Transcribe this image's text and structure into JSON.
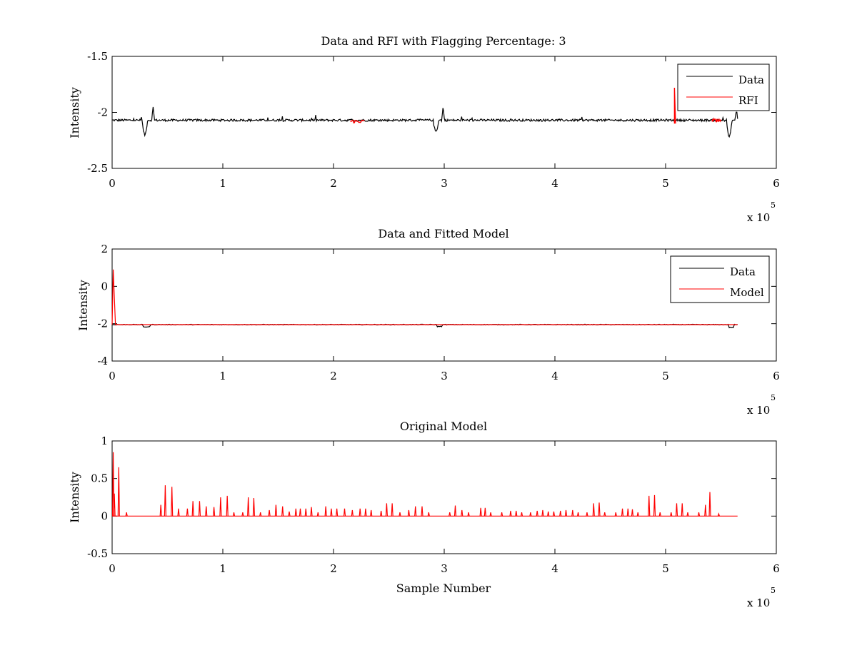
{
  "figure": {
    "background": "#ffffff"
  },
  "chart_data": [
    {
      "type": "line",
      "title": "Data and RFI with Flagging Percentage: 3",
      "xlabel": "",
      "ylabel": "Intensity",
      "xlim": [
        0,
        6
      ],
      "ylim": [
        -2.5,
        -1.5
      ],
      "x_multiplier": "x 10",
      "x_multiplier_exp": "5",
      "xticks": [
        "0",
        "1",
        "2",
        "3",
        "4",
        "5",
        "6"
      ],
      "yticks": [
        "-1.5",
        "-2",
        "-2.5"
      ],
      "ytick_values": [
        -1.5,
        -2,
        -2.5
      ],
      "legend": {
        "placement": "top-right",
        "entries": [
          {
            "label": "Data",
            "color": "#000000"
          },
          {
            "label": "RFI",
            "color": "#ff0000"
          }
        ]
      },
      "series": [
        {
          "name": "Data",
          "color": "#000000",
          "baseline": -2.07,
          "features": [
            {
              "x": 0.0,
              "type": "dip",
              "depth": 0.1,
              "width": 0.02
            },
            {
              "x": 0.32,
              "type": "dip",
              "depth": 0.13,
              "width": 0.05
            },
            {
              "x": 0.37,
              "type": "spike",
              "height": 0.12
            },
            {
              "x": 2.95,
              "type": "dip",
              "depth": 0.1,
              "width": 0.05
            },
            {
              "x": 2.99,
              "type": "spike",
              "height": 0.13
            },
            {
              "x": 5.6,
              "type": "dip",
              "depth": 0.15,
              "width": 0.05
            },
            {
              "x": 5.64,
              "type": "spike",
              "height": 0.1
            }
          ],
          "xmax": 5.65
        },
        {
          "name": "RFI",
          "color": "#ff0000",
          "segments": [
            {
              "x0": 2.15,
              "x1": 2.28,
              "y": -2.08
            },
            {
              "x0": 5.08,
              "x1": 5.09,
              "y": -1.78
            },
            {
              "x0": 5.42,
              "x1": 5.5,
              "y": -2.07
            }
          ]
        }
      ]
    },
    {
      "type": "line",
      "title": "Data and Fitted Model",
      "xlabel": "",
      "ylabel": "Intensity",
      "xlim": [
        0,
        6
      ],
      "ylim": [
        -4,
        2
      ],
      "x_multiplier": "x 10",
      "x_multiplier_exp": "5",
      "xticks": [
        "0",
        "1",
        "2",
        "3",
        "4",
        "5",
        "6"
      ],
      "yticks": [
        "2",
        "0",
        "-2",
        "-4"
      ],
      "ytick_values": [
        2,
        0,
        -2,
        -4
      ],
      "legend": {
        "placement": "top-right",
        "entries": [
          {
            "label": "Data",
            "color": "#000000"
          },
          {
            "label": "Model",
            "color": "#ff0000"
          }
        ]
      },
      "series": [
        {
          "name": "Data",
          "color": "#000000",
          "baseline": -2.05,
          "xmax": 5.65
        },
        {
          "name": "Model",
          "color": "#ff0000",
          "baseline": -2.05,
          "spike_x": 0.01,
          "spike_y": 0.9,
          "xmax": 5.65
        }
      ]
    },
    {
      "type": "line",
      "title": "Original Model",
      "xlabel": "Sample Number",
      "ylabel": "Intensity",
      "xlim": [
        0,
        6
      ],
      "ylim": [
        -0.5,
        1
      ],
      "x_multiplier": "x 10",
      "x_multiplier_exp": "5",
      "xticks": [
        "0",
        "1",
        "2",
        "3",
        "4",
        "5",
        "6"
      ],
      "yticks": [
        "1",
        "0.5",
        "0",
        "-0.5"
      ],
      "ytick_values": [
        1,
        0.5,
        0,
        -0.5
      ],
      "series": [
        {
          "name": "Model",
          "color": "#ff0000",
          "baseline": 0,
          "xmax": 5.65,
          "spikes": [
            [
              0.01,
              0.85
            ],
            [
              0.02,
              0.3
            ],
            [
              0.06,
              0.65
            ],
            [
              0.13,
              0.05
            ],
            [
              0.44,
              0.15
            ],
            [
              0.48,
              0.41
            ],
            [
              0.54,
              0.39
            ],
            [
              0.6,
              0.1
            ],
            [
              0.68,
              0.1
            ],
            [
              0.73,
              0.2
            ],
            [
              0.79,
              0.2
            ],
            [
              0.85,
              0.13
            ],
            [
              0.92,
              0.12
            ],
            [
              0.98,
              0.25
            ],
            [
              1.04,
              0.27
            ],
            [
              1.1,
              0.05
            ],
            [
              1.18,
              0.05
            ],
            [
              1.23,
              0.25
            ],
            [
              1.28,
              0.24
            ],
            [
              1.34,
              0.05
            ],
            [
              1.42,
              0.08
            ],
            [
              1.48,
              0.15
            ],
            [
              1.54,
              0.13
            ],
            [
              1.6,
              0.06
            ],
            [
              1.66,
              0.1
            ],
            [
              1.7,
              0.1
            ],
            [
              1.75,
              0.1
            ],
            [
              1.8,
              0.12
            ],
            [
              1.86,
              0.05
            ],
            [
              1.93,
              0.13
            ],
            [
              1.98,
              0.1
            ],
            [
              2.03,
              0.1
            ],
            [
              2.1,
              0.1
            ],
            [
              2.17,
              0.08
            ],
            [
              2.24,
              0.1
            ],
            [
              2.29,
              0.1
            ],
            [
              2.34,
              0.08
            ],
            [
              2.43,
              0.07
            ],
            [
              2.48,
              0.17
            ],
            [
              2.53,
              0.17
            ],
            [
              2.6,
              0.05
            ],
            [
              2.68,
              0.08
            ],
            [
              2.74,
              0.13
            ],
            [
              2.8,
              0.13
            ],
            [
              2.86,
              0.05
            ],
            [
              3.05,
              0.05
            ],
            [
              3.1,
              0.14
            ],
            [
              3.16,
              0.08
            ],
            [
              3.22,
              0.05
            ],
            [
              3.33,
              0.11
            ],
            [
              3.37,
              0.11
            ],
            [
              3.42,
              0.05
            ],
            [
              3.52,
              0.05
            ],
            [
              3.6,
              0.07
            ],
            [
              3.65,
              0.07
            ],
            [
              3.7,
              0.05
            ],
            [
              3.78,
              0.05
            ],
            [
              3.84,
              0.07
            ],
            [
              3.89,
              0.08
            ],
            [
              3.94,
              0.06
            ],
            [
              3.99,
              0.06
            ],
            [
              4.05,
              0.07
            ],
            [
              4.1,
              0.08
            ],
            [
              4.16,
              0.08
            ],
            [
              4.21,
              0.05
            ],
            [
              4.29,
              0.05
            ],
            [
              4.35,
              0.17
            ],
            [
              4.4,
              0.18
            ],
            [
              4.45,
              0.05
            ],
            [
              4.55,
              0.05
            ],
            [
              4.61,
              0.1
            ],
            [
              4.66,
              0.1
            ],
            [
              4.7,
              0.09
            ],
            [
              4.75,
              0.05
            ],
            [
              4.85,
              0.27
            ],
            [
              4.9,
              0.28
            ],
            [
              4.95,
              0.05
            ],
            [
              5.05,
              0.05
            ],
            [
              5.1,
              0.17
            ],
            [
              5.15,
              0.17
            ],
            [
              5.2,
              0.05
            ],
            [
              5.3,
              0.05
            ],
            [
              5.36,
              0.15
            ],
            [
              5.4,
              0.32
            ],
            [
              5.48,
              0.03
            ]
          ]
        }
      ]
    }
  ]
}
